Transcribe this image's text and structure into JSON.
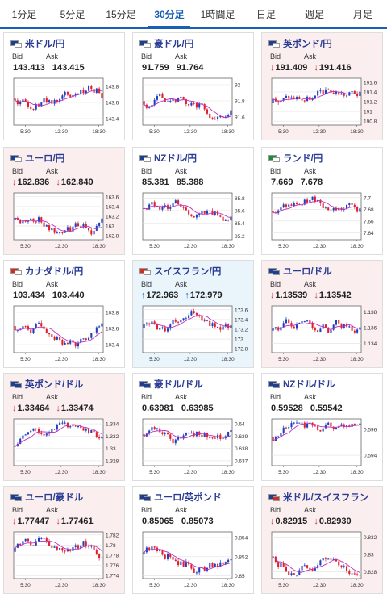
{
  "tabs": [
    {
      "label": "1分足",
      "active": false
    },
    {
      "label": "5分足",
      "active": false
    },
    {
      "label": "15分足",
      "active": false
    },
    {
      "label": "30分足",
      "active": true
    },
    {
      "label": "1時間足",
      "active": false
    },
    {
      "label": "日足",
      "active": false
    },
    {
      "label": "週足",
      "active": false
    },
    {
      "label": "月足",
      "active": false
    }
  ],
  "labels": {
    "bid": "Bid",
    "ask": "Ask"
  },
  "colors": {
    "up_candle": "#1f3fbf",
    "down_candle": "#e0202a",
    "ma_line": "#c030c0",
    "accent": "#1a5fb4",
    "down_bg": "#fbeeee",
    "up_bg": "#eaf4fb"
  },
  "cards": [
    {
      "pair": "米ドル/円",
      "flags": [
        "#1c3f94",
        "#ffffff"
      ],
      "bid": "143.413",
      "ask": "143.415",
      "arrow": "",
      "trend": "none",
      "chart_data": {
        "type": "candlestick",
        "x_ticks": [
          "5:30",
          "12:30",
          "18:30"
        ],
        "y_ticks": [
          "143.8",
          "143.6",
          "143.4"
        ],
        "ylim": [
          143.32,
          143.9
        ]
      }
    },
    {
      "pair": "豪ドル/円",
      "flags": [
        "#1c3f94",
        "#ffffff"
      ],
      "bid": "91.759",
      "ask": "91.764",
      "arrow": "",
      "trend": "none",
      "chart_data": {
        "type": "candlestick",
        "x_ticks": [
          "5:30",
          "12:30",
          "18:30"
        ],
        "y_ticks": [
          "92",
          "91.8",
          "91.6"
        ],
        "ylim": [
          91.5,
          92.08
        ]
      }
    },
    {
      "pair": "英ポンド/円",
      "flags": [
        "#1c3f94",
        "#ffffff"
      ],
      "bid": "191.409",
      "ask": "191.416",
      "arrow": "↓",
      "trend": "down",
      "chart_data": {
        "type": "candlestick",
        "x_ticks": [
          "5:30",
          "12:30",
          "18:30"
        ],
        "y_ticks": [
          "191.6",
          "191.4",
          "191.2",
          "191",
          "190.8"
        ],
        "ylim": [
          190.72,
          191.68
        ]
      }
    },
    {
      "pair": "ユーロ/円",
      "flags": [
        "#1c3f94",
        "#ffffff"
      ],
      "bid": "162.836",
      "ask": "162.840",
      "arrow": "↓",
      "trend": "down",
      "chart_data": {
        "type": "candlestick",
        "x_ticks": [
          "5:30",
          "12:30",
          "18:30"
        ],
        "y_ticks": [
          "163.6",
          "163.4",
          "163.2",
          "163",
          "162.8"
        ],
        "ylim": [
          162.72,
          163.68
        ]
      }
    },
    {
      "pair": "NZドル/円",
      "flags": [
        "#1c3f94",
        "#ffffff"
      ],
      "bid": "85.381",
      "ask": "85.388",
      "arrow": "",
      "trend": "none",
      "chart_data": {
        "type": "candlestick",
        "x_ticks": [
          "5:30",
          "12:30",
          "18:30"
        ],
        "y_ticks": [
          "85.8",
          "85.6",
          "85.4",
          "85.2"
        ],
        "ylim": [
          85.14,
          85.88
        ]
      }
    },
    {
      "pair": "ランド/円",
      "flags": [
        "#1b8a3c",
        "#ffffff"
      ],
      "bid": "7.669",
      "ask": "7.678",
      "arrow": "",
      "trend": "none",
      "chart_data": {
        "type": "candlestick",
        "x_ticks": [
          "5:30",
          "12:30",
          "18:30"
        ],
        "y_ticks": [
          "7.7",
          "7.68",
          "7.66",
          "7.64"
        ],
        "ylim": [
          7.628,
          7.708
        ]
      }
    },
    {
      "pair": "カナダドル/円",
      "flags": [
        "#d52b1e",
        "#ffffff"
      ],
      "bid": "103.434",
      "ask": "103.440",
      "arrow": "",
      "trend": "none",
      "chart_data": {
        "type": "candlestick",
        "x_ticks": [
          "5:30",
          "12:30",
          "18:30"
        ],
        "y_ticks": [
          "103.8",
          "103.6",
          "103.4"
        ],
        "ylim": [
          103.3,
          103.88
        ]
      }
    },
    {
      "pair": "スイスフラン/円",
      "flags": [
        "#d52b1e",
        "#ffffff"
      ],
      "bid": "172.963",
      "ask": "172.979",
      "arrow": "↑",
      "trend": "up",
      "chart_data": {
        "type": "candlestick",
        "x_ticks": [
          "5:30",
          "12:30",
          "18:30"
        ],
        "y_ticks": [
          "173.6",
          "173.4",
          "173.2",
          "173",
          "172.8"
        ],
        "ylim": [
          172.72,
          173.68
        ]
      }
    },
    {
      "pair": "ユーロ/ドル",
      "flags": [
        "#1c3f94",
        "#1c3f94"
      ],
      "bid": "1.13539",
      "ask": "1.13542",
      "arrow": "↓",
      "trend": "down",
      "chart_data": {
        "type": "candlestick",
        "x_ticks": [
          "5:30",
          "12:30",
          "18:30"
        ],
        "y_ticks": [
          "1.138",
          "1.136",
          "1.134"
        ],
        "ylim": [
          1.1328,
          1.1388
        ]
      }
    },
    {
      "pair": "英ポンド/ドル",
      "flags": [
        "#1c3f94",
        "#1c3f94"
      ],
      "bid": "1.33464",
      "ask": "1.33474",
      "arrow": "↓",
      "trend": "down",
      "chart_data": {
        "type": "candlestick",
        "x_ticks": [
          "5:30",
          "12:30",
          "18:30"
        ],
        "y_ticks": [
          "1.334",
          "1.332",
          "1.33",
          "1.328"
        ],
        "ylim": [
          1.3272,
          1.3348
        ]
      }
    },
    {
      "pair": "豪ドル/ドル",
      "flags": [
        "#1c3f94",
        "#1c3f94"
      ],
      "bid": "0.63981",
      "ask": "0.63985",
      "arrow": "",
      "trend": "none",
      "chart_data": {
        "type": "candlestick",
        "x_ticks": [
          "5:30",
          "12:30",
          "18:30"
        ],
        "y_ticks": [
          "0.64",
          "0.639",
          "0.638",
          "0.637"
        ],
        "ylim": [
          0.6366,
          0.6404
        ]
      }
    },
    {
      "pair": "NZドル/ドル",
      "flags": [
        "#1c3f94",
        "#1c3f94"
      ],
      "bid": "0.59528",
      "ask": "0.59542",
      "arrow": "",
      "trend": "none",
      "chart_data": {
        "type": "candlestick",
        "x_ticks": [
          "5:30",
          "12:30",
          "18:30"
        ],
        "y_ticks": [
          "0.596",
          "0.594"
        ],
        "ylim": [
          0.5932,
          0.5968
        ]
      }
    },
    {
      "pair": "ユーロ/豪ドル",
      "flags": [
        "#1c3f94",
        "#1c3f94"
      ],
      "bid": "1.77447",
      "ask": "1.77461",
      "arrow": "↓",
      "trend": "down",
      "chart_data": {
        "type": "candlestick",
        "x_ticks": [
          "5:30",
          "12:30",
          "18:30"
        ],
        "y_ticks": [
          "1.782",
          "1.78",
          "1.778",
          "1.776",
          "1.774"
        ],
        "ylim": [
          1.7734,
          1.7826
        ]
      }
    },
    {
      "pair": "ユーロ/英ポンド",
      "flags": [
        "#1c3f94",
        "#1c3f94"
      ],
      "bid": "0.85065",
      "ask": "0.85073",
      "arrow": "",
      "trend": "none",
      "chart_data": {
        "type": "candlestick",
        "x_ticks": [
          "5:30",
          "12:30",
          "18:30"
        ],
        "y_ticks": [
          "0.854",
          "0.852",
          "0.85"
        ],
        "ylim": [
          0.8497,
          0.8546
        ]
      }
    },
    {
      "pair": "米ドル/スイスフラン",
      "flags": [
        "#1c3f94",
        "#d52b1e"
      ],
      "bid": "0.82915",
      "ask": "0.82930",
      "arrow": "↓",
      "trend": "down",
      "chart_data": {
        "type": "candlestick",
        "x_ticks": [
          "5:30",
          "12:30",
          "18:30"
        ],
        "y_ticks": [
          "0.832",
          "0.83",
          "0.828"
        ],
        "ylim": [
          0.8272,
          0.8326
        ]
      }
    }
  ]
}
